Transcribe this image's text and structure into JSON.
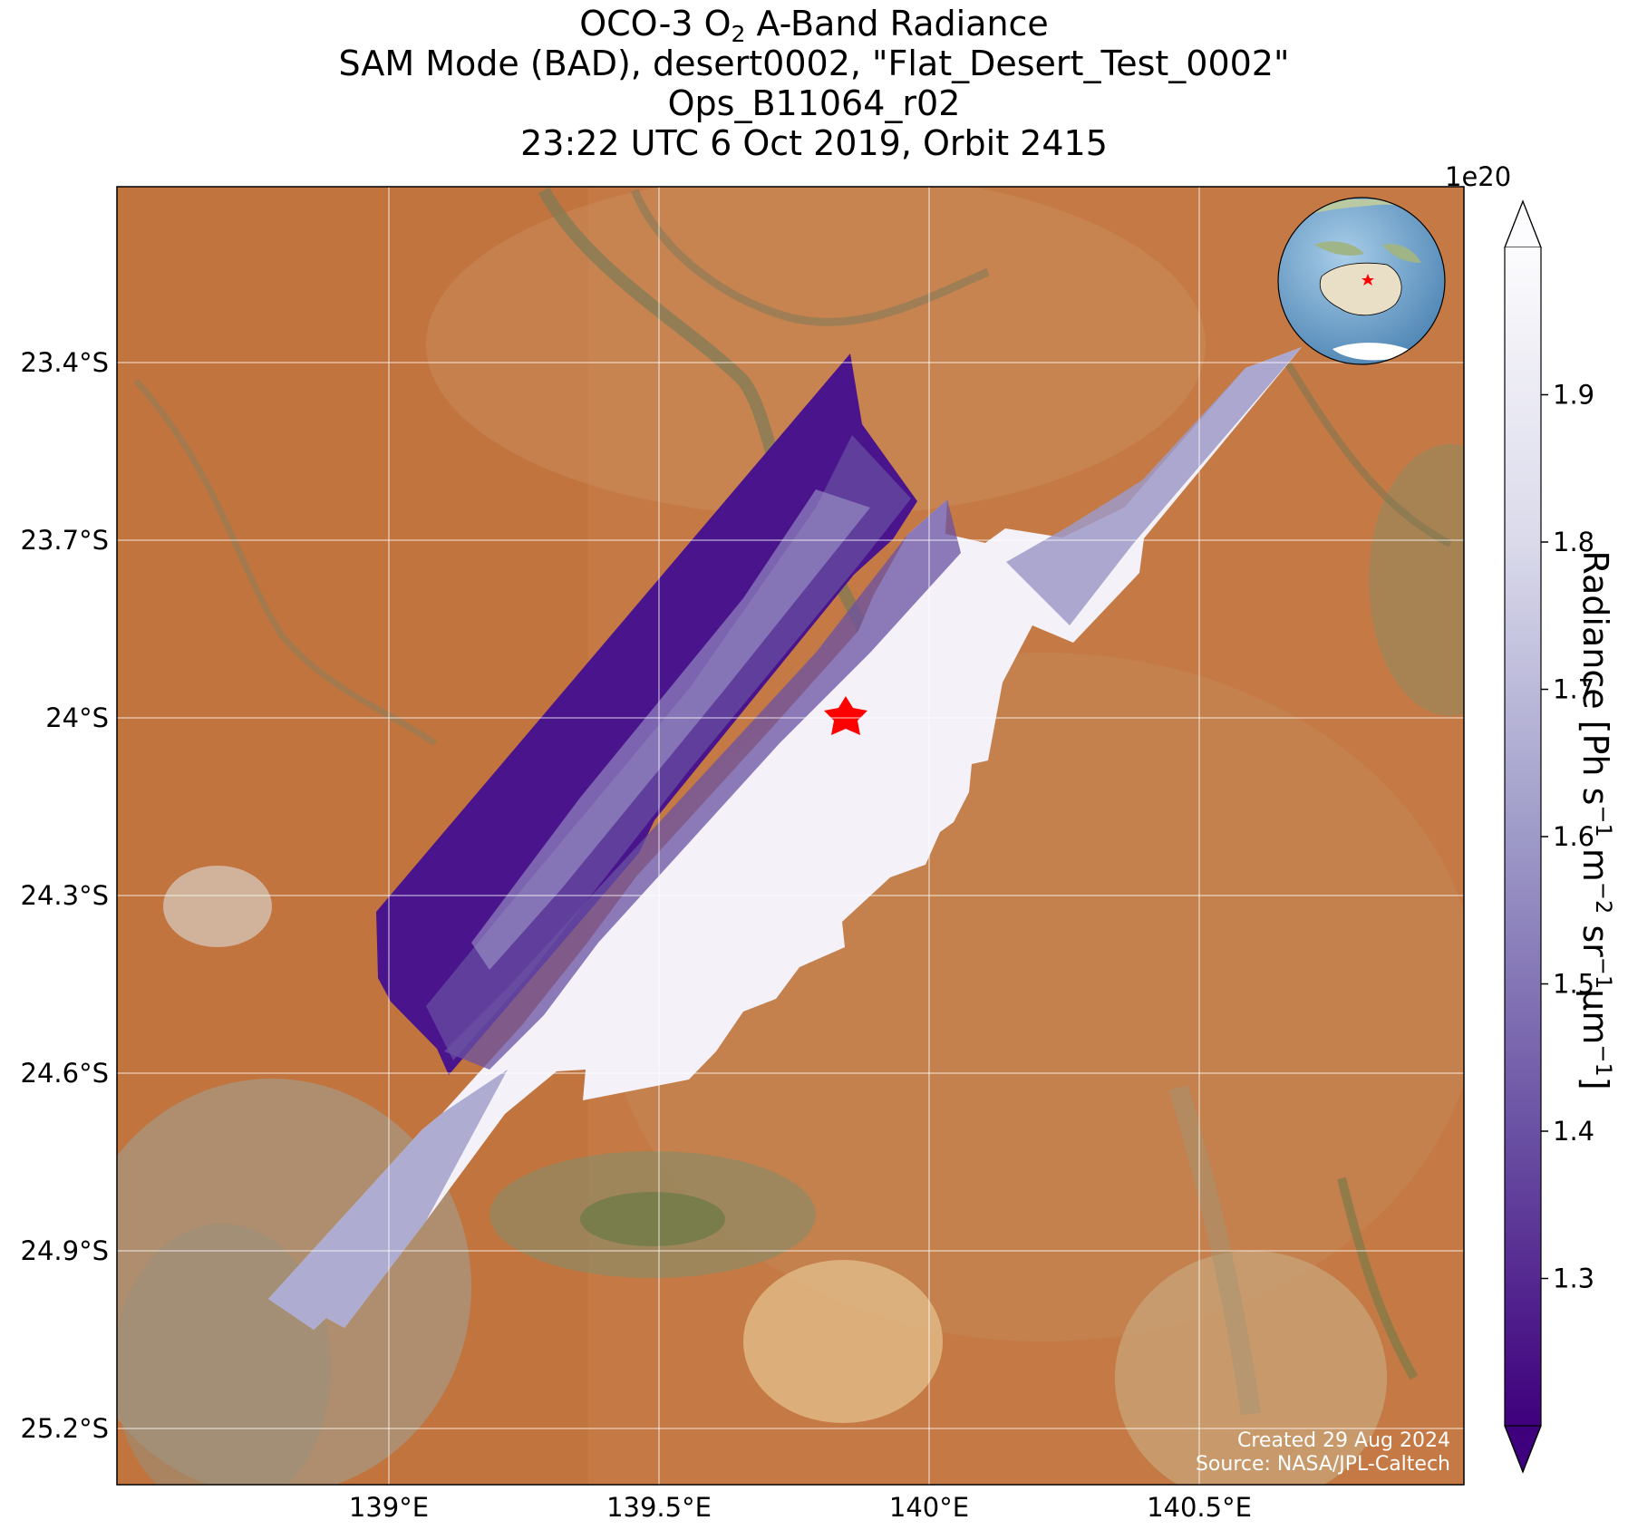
{
  "title": {
    "line1_prefix": "OCO-3 O",
    "line1_sub": "2",
    "line1_suffix": " A-Band Radiance",
    "line2": "SAM Mode (BAD), desert0002, \"Flat_Desert_Test_0002\"",
    "line3": "Ops_B11064_r02",
    "line4": "23:22 UTC 6 Oct 2019, Orbit 2415"
  },
  "axes": {
    "lon_ticks": [
      {
        "value": 139.0,
        "label": "139°E"
      },
      {
        "value": 139.5,
        "label": "139.5°E"
      },
      {
        "value": 140.0,
        "label": "140°E"
      },
      {
        "value": 140.5,
        "label": "140.5°E"
      }
    ],
    "lat_ticks": [
      {
        "value": -23.4,
        "label": "23.4°S"
      },
      {
        "value": -23.7,
        "label": "23.7°S"
      },
      {
        "value": -24.0,
        "label": "24°S"
      },
      {
        "value": -24.3,
        "label": "24.3°S"
      },
      {
        "value": -24.6,
        "label": "24.6°S"
      },
      {
        "value": -24.9,
        "label": "24.9°S"
      },
      {
        "value": -25.2,
        "label": "25.2°S"
      }
    ],
    "lon_range": [
      138.5,
      141.0
    ],
    "lat_range": [
      -25.3,
      -23.1
    ],
    "grid": true
  },
  "colorbar": {
    "multiplier": "1e20",
    "label_parts": [
      "Radiance [Ph s",
      "−1",
      " m",
      "−2",
      " sr",
      "−1",
      "μm",
      "−1",
      "]"
    ],
    "ticks": [
      {
        "value": 1.3,
        "label": "1.3"
      },
      {
        "value": 1.4,
        "label": "1.4"
      },
      {
        "value": 1.5,
        "label": "1.5"
      },
      {
        "value": 1.6,
        "label": "1.6"
      },
      {
        "value": 1.7,
        "label": "1.7"
      },
      {
        "value": 1.8,
        "label": "1.8"
      },
      {
        "value": 1.9,
        "label": "1.9"
      }
    ],
    "range": [
      1.2,
      2.0
    ],
    "extend": "both",
    "colormap": [
      "#3f007d",
      "#6a51a3",
      "#9e9ac8",
      "#dadaeb",
      "#fcfbfd"
    ]
  },
  "map": {
    "background": "satellite imagery",
    "colors": {
      "desert": "#c97a45",
      "desert_dark": "#b8622d",
      "sand_light": "#d9b48a",
      "vegetation": "#7a7550",
      "red_accent": "#ff0000"
    },
    "target_marker": {
      "lon": 139.84,
      "lat": -23.99,
      "symbol": "red-star"
    }
  },
  "inset_globe": {
    "centered_on": "Australia",
    "marker": "red-star"
  },
  "credits": {
    "line1": "Created 29 Aug 2024",
    "line2": "Source: NASA/JPL-Caltech"
  }
}
